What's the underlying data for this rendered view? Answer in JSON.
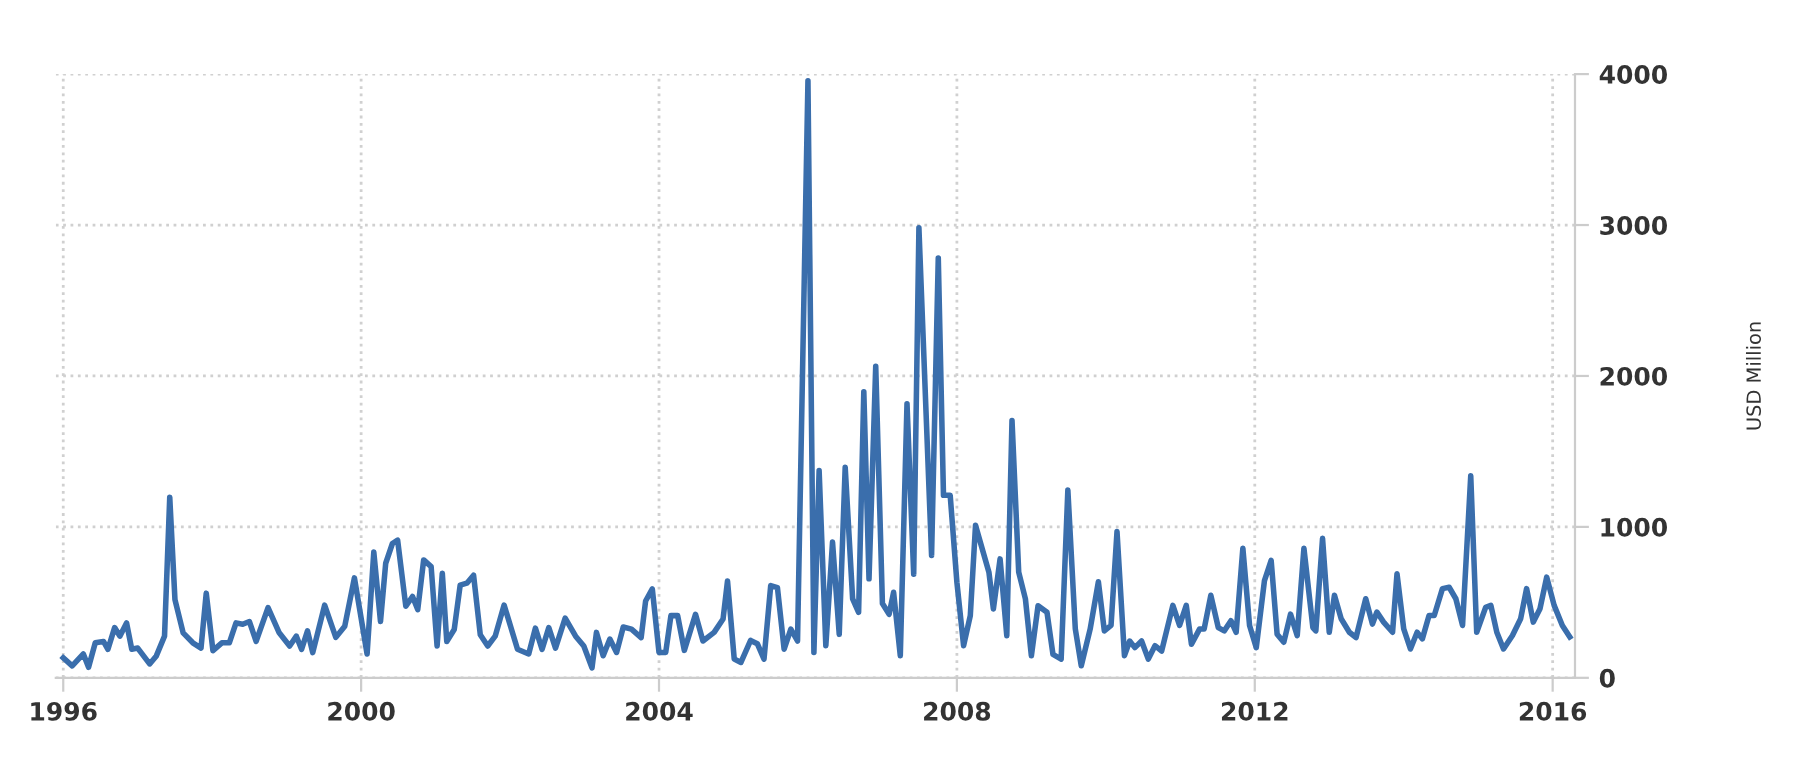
{
  "chart_data": {
    "type": "line",
    "ylabel": "USD Million",
    "x": [
      1996.0,
      1996.12,
      1996.27,
      1996.34,
      1996.43,
      1996.54,
      1996.6,
      1996.69,
      1996.76,
      1996.85,
      1996.92,
      1997.0,
      1997.16,
      1997.25,
      1997.36,
      1997.43,
      1997.5,
      1997.61,
      1997.74,
      1997.85,
      1997.92,
      1998.01,
      1998.13,
      1998.23,
      1998.32,
      1998.41,
      1998.5,
      1998.59,
      1998.75,
      1998.9,
      1999.04,
      1999.13,
      1999.2,
      1999.28,
      1999.35,
      1999.51,
      1999.66,
      1999.78,
      1999.91,
      2000.08,
      2000.17,
      2000.26,
      2000.33,
      2000.42,
      2000.49,
      2000.6,
      2000.69,
      2000.76,
      2000.84,
      2000.94,
      2001.02,
      2001.09,
      2001.15,
      2001.25,
      2001.33,
      2001.42,
      2001.51,
      2001.6,
      2001.7,
      2001.8,
      2001.92,
      2002.1,
      2002.25,
      2002.34,
      2002.43,
      2002.52,
      2002.61,
      2002.74,
      2002.88,
      2002.99,
      2003.1,
      2003.16,
      2003.25,
      2003.34,
      2003.43,
      2003.52,
      2003.63,
      2003.76,
      2003.82,
      2003.91,
      2004.0,
      2004.09,
      2004.16,
      2004.25,
      2004.34,
      2004.49,
      2004.59,
      2004.74,
      2004.86,
      2004.92,
      2005.01,
      2005.1,
      2005.23,
      2005.32,
      2005.41,
      2005.5,
      2005.59,
      2005.68,
      2005.77,
      2005.86,
      2006.0,
      2006.08,
      2006.15,
      2006.24,
      2006.33,
      2006.42,
      2006.5,
      2006.6,
      2006.68,
      2006.75,
      2006.82,
      2006.91,
      2007.0,
      2007.09,
      2007.15,
      2007.24,
      2007.33,
      2007.42,
      2007.49,
      2007.66,
      2007.75,
      2007.82,
      2007.91,
      2008.0,
      2008.09,
      2008.18,
      2008.25,
      2008.43,
      2008.49,
      2008.58,
      2008.67,
      2008.74,
      2008.83,
      2008.92,
      2009.0,
      2009.09,
      2009.21,
      2009.29,
      2009.4,
      2009.49,
      2009.59,
      2009.67,
      2009.79,
      2009.9,
      2009.98,
      2010.07,
      2010.15,
      2010.25,
      2010.32,
      2010.39,
      2010.48,
      2010.57,
      2010.66,
      2010.75,
      2010.9,
      2010.99,
      2011.08,
      2011.15,
      2011.26,
      2011.32,
      2011.41,
      2011.51,
      2011.59,
      2011.68,
      2011.75,
      2011.84,
      2011.93,
      2012.02,
      2012.13,
      2012.22,
      2012.3,
      2012.39,
      2012.48,
      2012.57,
      2012.66,
      2012.78,
      2012.82,
      2012.91,
      2013.0,
      2013.07,
      2013.16,
      2013.27,
      2013.36,
      2013.49,
      2013.58,
      2013.64,
      2013.73,
      2013.85,
      2013.91,
      2014.0,
      2014.09,
      2014.18,
      2014.25,
      2014.34,
      2014.41,
      2014.52,
      2014.61,
      2014.7,
      2014.79,
      2014.9,
      2014.98,
      2015.1,
      2015.17,
      2015.25,
      2015.34,
      2015.46,
      2015.57,
      2015.65,
      2015.74,
      2015.83,
      2015.92,
      2016.02,
      2016.13,
      2016.23
    ],
    "series": [
      {
        "color": "#3a6eac",
        "values": [
          132,
          79,
          158,
          70,
          232,
          241,
          189,
          333,
          276,
          364,
          189,
          197,
          92,
          145,
          276,
          1197,
          518,
          298,
          232,
          197,
          561,
          180,
          232,
          232,
          364,
          355,
          373,
          241,
          465,
          298,
          211,
          276,
          189,
          311,
          167,
          482,
          268,
          342,
          662,
          158,
          833,
          373,
          759,
          890,
          912,
          474,
          539,
          452,
          781,
          737,
          211,
          693,
          241,
          320,
          614,
          627,
          680,
          285,
          211,
          276,
          482,
          189,
          158,
          329,
          189,
          333,
          197,
          395,
          276,
          211,
          66,
          301,
          146,
          257,
          168,
          337,
          323,
          266,
          509,
          589,
          168,
          168,
          412,
          412,
          182,
          421,
          244,
          301,
          390,
          642,
          124,
          102,
          248,
          226,
          124,
          611,
          598,
          190,
          323,
          244,
          3956,
          168,
          1373,
          213,
          899,
          288,
          1395,
          523,
          434,
          1896,
          656,
          2064,
          492,
          421,
          567,
          146,
          1816,
          687,
          2981,
          811,
          2782,
          1209,
          1209,
          633,
          213,
          412,
          1010,
          700,
          456,
          788,
          279,
          1705,
          700,
          523,
          146,
          478,
          434,
          155,
          124,
          1244,
          324,
          80,
          324,
          636,
          311,
          347,
          969,
          147,
          244,
          200,
          244,
          124,
          213,
          178,
          480,
          347,
          480,
          222,
          324,
          324,
          547,
          333,
          311,
          378,
          302,
          858,
          347,
          200,
          644,
          778,
          289,
          236,
          422,
          280,
          858,
          333,
          311,
          924,
          302,
          547,
          391,
          302,
          267,
          524,
          356,
          436,
          369,
          302,
          689,
          324,
          191,
          302,
          258,
          413,
          413,
          591,
          600,
          524,
          347,
          1338,
          302,
          467,
          480,
          302,
          191,
          280,
          391,
          591,
          369,
          458,
          667,
          480,
          347,
          271
        ]
      }
    ],
    "xlim": [
      1995.9,
      2016.3
    ],
    "xticks": [
      1996,
      2000,
      2004,
      2008,
      2012,
      2016
    ],
    "ylim": [
      0,
      4000
    ],
    "yticks": [
      0,
      1000,
      2000,
      3000,
      4000
    ],
    "grid": true,
    "legend": false,
    "marker": "none",
    "line_style": "solid"
  }
}
